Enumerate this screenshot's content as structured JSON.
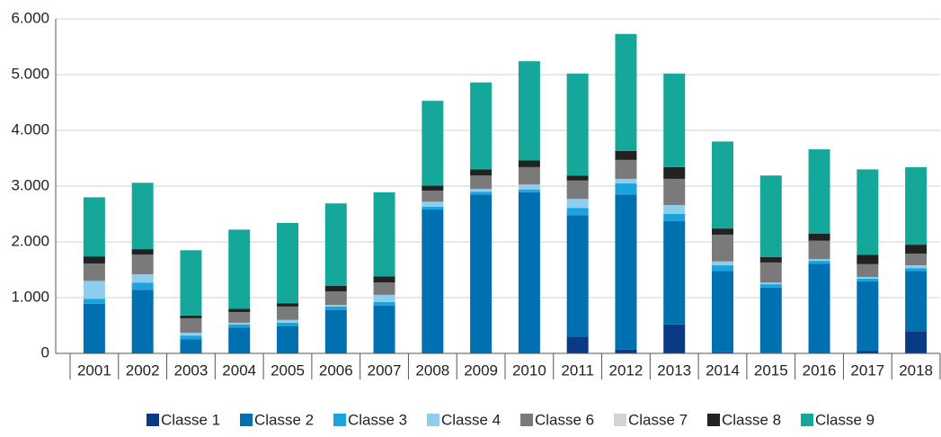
{
  "chart_data": {
    "type": "stacked_bar",
    "categories": [
      "2001",
      "2002",
      "2003",
      "2004",
      "2005",
      "2006",
      "2007",
      "2008",
      "2009",
      "2010",
      "2011",
      "2012",
      "2013",
      "2014",
      "2015",
      "2016",
      "2017",
      "2018"
    ],
    "series": [
      {
        "name": "Classe 1",
        "color": "#0b3a84",
        "values": [
          0,
          0,
          0,
          0,
          0,
          0,
          0,
          0,
          0,
          0,
          300,
          70,
          520,
          20,
          10,
          0,
          40,
          400
        ]
      },
      {
        "name": "Classe 2",
        "color": "#0070b0",
        "values": [
          890,
          1140,
          250,
          460,
          490,
          780,
          860,
          2580,
          2850,
          2890,
          2180,
          2780,
          1850,
          1460,
          1170,
          1610,
          1250,
          1080
        ]
      },
      {
        "name": "Classe 3",
        "color": "#1ba3dd",
        "values": [
          90,
          130,
          70,
          60,
          60,
          60,
          60,
          50,
          50,
          50,
          130,
          200,
          130,
          100,
          60,
          50,
          50,
          50
        ]
      },
      {
        "name": "Classe 4",
        "color": "#8dcdee",
        "values": [
          320,
          150,
          50,
          30,
          50,
          30,
          130,
          90,
          50,
          90,
          160,
          80,
          160,
          70,
          30,
          30,
          30,
          50
        ]
      },
      {
        "name": "Classe 6",
        "color": "#7a7a7a",
        "values": [
          310,
          350,
          260,
          190,
          240,
          240,
          220,
          200,
          240,
          310,
          330,
          340,
          470,
          480,
          360,
          330,
          230,
          210
        ]
      },
      {
        "name": "Classe 7",
        "color": "#d3d3d3",
        "values": [
          0,
          0,
          0,
          0,
          0,
          0,
          0,
          0,
          0,
          0,
          0,
          0,
          0,
          0,
          0,
          0,
          0,
          0
        ]
      },
      {
        "name": "Classe 8",
        "color": "#222222",
        "values": [
          130,
          100,
          50,
          60,
          60,
          100,
          110,
          90,
          110,
          120,
          90,
          160,
          210,
          110,
          100,
          130,
          170,
          160
        ]
      },
      {
        "name": "Classe 9",
        "color": "#15a89a",
        "values": [
          1060,
          1190,
          1170,
          1420,
          1440,
          1480,
          1510,
          1520,
          1560,
          1780,
          1830,
          2100,
          1680,
          1560,
          1460,
          1510,
          1530,
          1390
        ]
      }
    ],
    "ylim": [
      0,
      6000
    ],
    "yticks": [
      0,
      {
        "value": 1000,
        "label": "1.000"
      },
      {
        "value": 2000,
        "label": "2.000"
      },
      {
        "value": 3000,
        "label": "3.000"
      },
      {
        "value": 4000,
        "label": "4.000"
      },
      {
        "value": 5000,
        "label": "5.000"
      },
      {
        "value": 6000,
        "label": "6.000"
      }
    ],
    "grid": true
  }
}
